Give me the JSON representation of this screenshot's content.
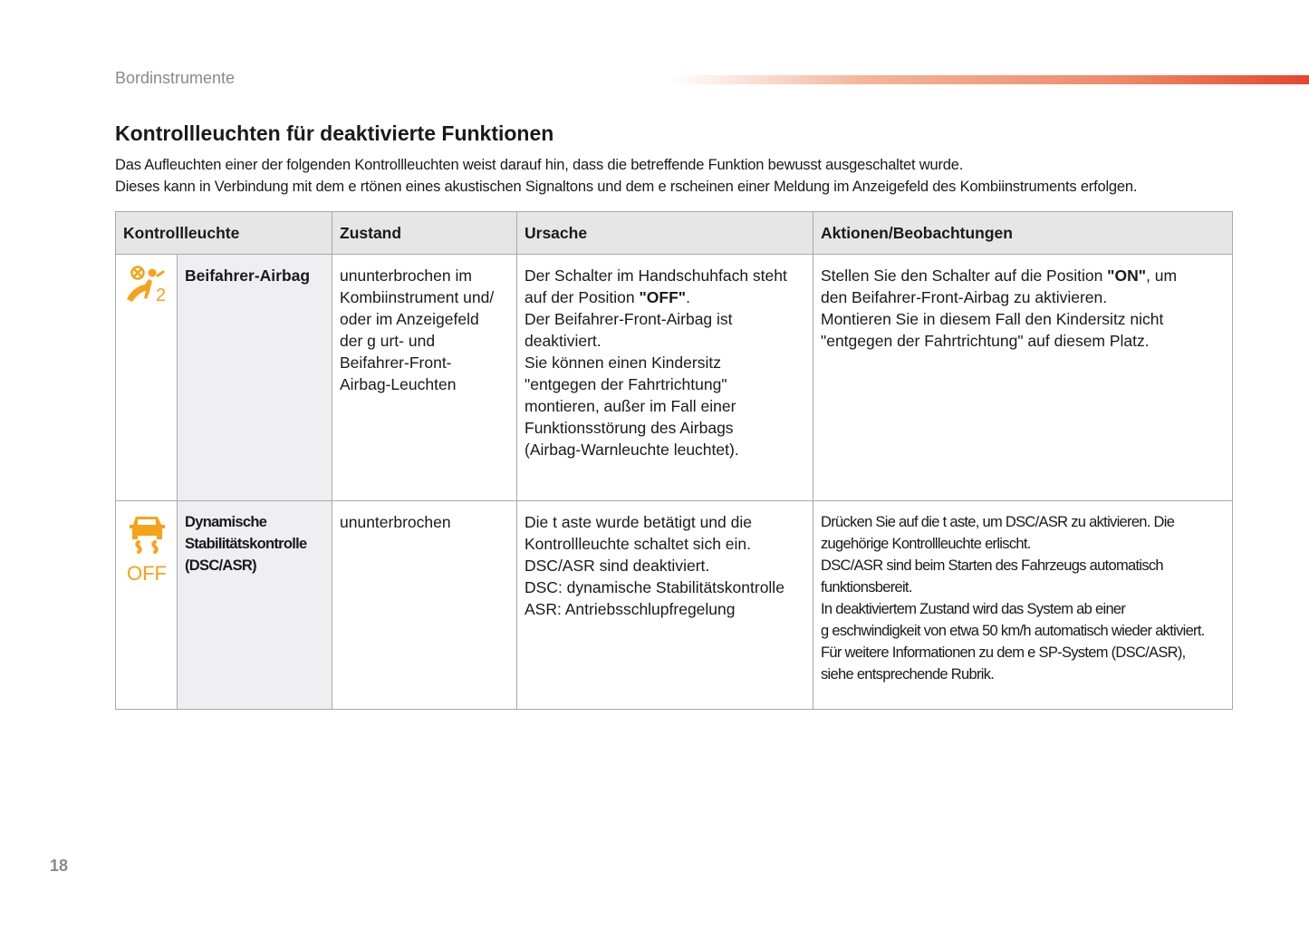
{
  "header": {
    "section": "Bordinstrumente",
    "accent_color": "#e4472d"
  },
  "title": "Kontrollleuchten für deaktivierte Funktionen",
  "intro": [
    "Das Aufleuchten einer der folgenden Kontrollleuchten weist darauf hin, dass die betreffende Funktion bewusst ausgeschaltet wurde.",
    "Dieses kann in Verbindung mit dem e rtönen eines akustischen Signaltons und dem e rscheinen einer Meldung im Anzeigefeld des Kombiinstruments erfolgen."
  ],
  "table": {
    "headers": [
      "Kontrollleuchte",
      "Zustand",
      "Ursache",
      "Aktionen/Beobachtungen"
    ],
    "icon_color": "#f5a31a",
    "rows": [
      {
        "icon": "passenger-airbag-off-icon",
        "name": [
          "Beifahrer-Airbag"
        ],
        "zustand": [
          "ununterbrochen im",
          "Kombiinstrument und/",
          "oder im Anzeigefeld",
          "der g urt- und",
          "Beifahrer-Front-",
          "Airbag-Leuchten"
        ],
        "ursache": {
          "l1": "Der Schalter im Handschuhfach steht",
          "l2a": "auf der Position ",
          "l2b": "\"OFF\"",
          "l2c": ".",
          "rest": [
            "Der Beifahrer-Front-Airbag ist",
            "deaktiviert.",
            "Sie können einen Kindersitz",
            "\"entgegen der Fahrtrichtung\"",
            "montieren, außer im Fall einer",
            "Funktionsstörung des Airbags",
            "(Airbag-Warnleuchte leuchtet)."
          ]
        },
        "aktionen": {
          "l1a": "Stellen Sie den Schalter auf die Position ",
          "l1b": "\"ON\"",
          "l1c": ", um",
          "rest": [
            "den Beifahrer-Front-Airbag zu aktivieren.",
            "Montieren Sie in diesem Fall den Kindersitz nicht",
            "\"entgegen der Fahrtrichtung\" auf diesem Platz."
          ]
        }
      },
      {
        "icon": "dsc-off-icon",
        "icon_text": "OFF",
        "name": [
          "Dynamische",
          "Stabilitätskontrolle",
          "(DSC/ASR)"
        ],
        "zustand": [
          "ununterbrochen"
        ],
        "ursache": [
          "Die t aste wurde betätigt und die",
          "Kontrollleuchte schaltet sich ein.",
          "DSC/ASR sind deaktiviert.",
          "DSC: dynamische Stabilitätskontrolle",
          "ASR: Antriebsschlupfregelung"
        ],
        "aktionen": [
          "Drücken Sie auf die t aste, um DSC/ASR zu aktivieren. Die",
          "zugehörige Kontrollleuchte erlischt.",
          "DSC/ASR sind beim Starten des Fahrzeugs automatisch",
          "funktionsbereit.",
          "In deaktiviertem Zustand wird das System ab einer",
          "g eschwindigkeit von etwa 50 km/h automatisch wieder aktiviert.",
          "Für weitere Informationen zu dem e SP-System (DSC/ASR),",
          "siehe entsprechende Rubrik."
        ]
      }
    ]
  },
  "page_number": "18"
}
